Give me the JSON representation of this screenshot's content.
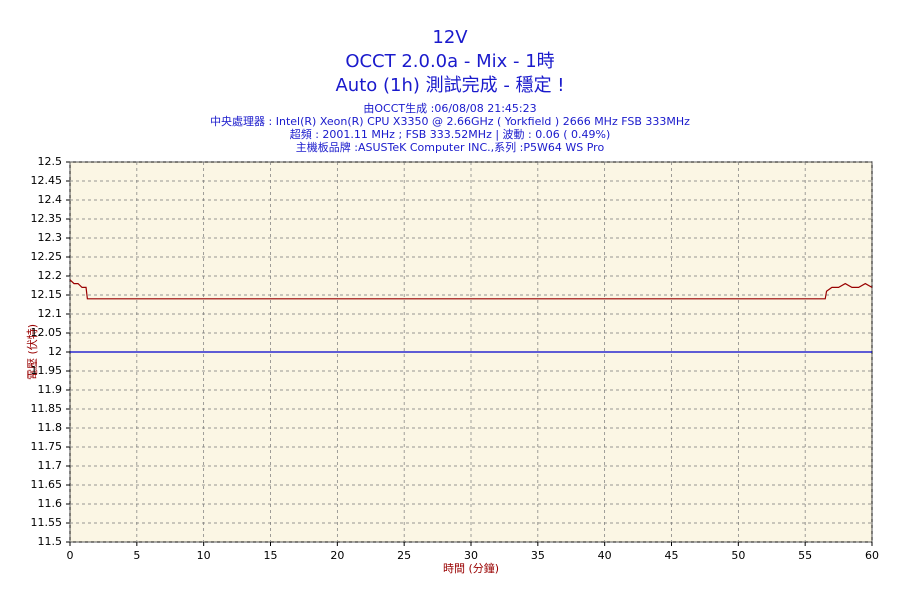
{
  "chart_data": {
    "type": "line",
    "title": "12V",
    "subtitle_lines": [
      "OCCT 2.0.0a - Mix - 1時",
      "Auto (1h) 測試完成 - 穩定 !"
    ],
    "info_lines": [
      "由OCCT生成 :06/08/08 21:45:23",
      "中央處理器 : Intel(R) Xeon(R) CPU X3350 @ 2.66GHz ( Yorkfield ) 2666 MHz FSB 333MHz",
      "超頻 : 2001.11 MHz ; FSB 333.52MHz | 波動 : 0.06 ( 0.49%)",
      "主機板品牌 :ASUSTeK Computer INC.,系列 :P5W64 WS Pro"
    ],
    "x_label": "時間 (分鐘)",
    "y_label": "電壓 (伏特)",
    "series": [
      {
        "color": "#990000",
        "x": [
          0,
          0.3,
          0.6,
          0.9,
          1.2,
          1.3,
          56.5,
          56.6,
          57,
          57.5,
          58,
          58.5,
          59,
          59.5,
          60
        ],
        "values": [
          12.19,
          12.18,
          12.18,
          12.17,
          12.17,
          12.14,
          12.14,
          12.16,
          12.17,
          12.17,
          12.18,
          12.17,
          12.17,
          12.18,
          12.17
        ]
      },
      {
        "color": "#0000cc",
        "x": [
          0,
          60
        ],
        "values": [
          12,
          12
        ]
      }
    ],
    "xlim": [
      0,
      60
    ],
    "xticks": [
      0,
      5,
      10,
      15,
      20,
      25,
      30,
      35,
      40,
      45,
      50,
      55,
      60
    ],
    "ylim": [
      11.5,
      12.5
    ],
    "yticks": [
      11.5,
      11.55,
      11.6,
      11.65,
      11.7,
      11.75,
      11.8,
      11.85,
      11.9,
      11.95,
      12,
      12.05,
      12.1,
      12.15,
      12.2,
      12.25,
      12.3,
      12.35,
      12.4,
      12.45,
      12.5
    ],
    "grid": true
  }
}
